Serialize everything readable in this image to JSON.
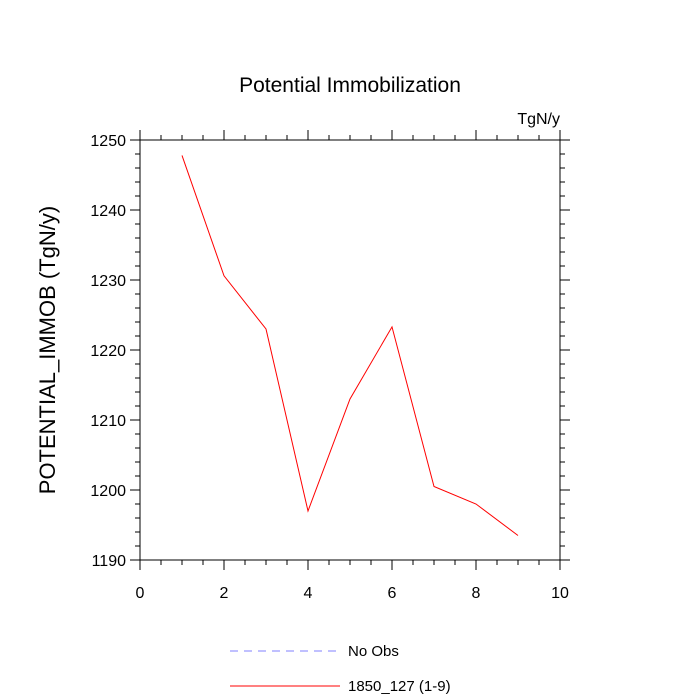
{
  "chart_data": {
    "type": "line",
    "title": "Potential Immobilization",
    "units_label": "TgN/y",
    "ylabel": "POTENTIAL_IMMOB  (TgN/y)",
    "xlabel": "",
    "xlim": [
      0,
      10
    ],
    "ylim": [
      1190,
      1250
    ],
    "x_ticks": [
      0,
      2,
      4,
      6,
      8,
      10
    ],
    "y_ticks": [
      1190,
      1200,
      1210,
      1220,
      1230,
      1240,
      1250
    ],
    "x": [
      1,
      2,
      3,
      4,
      5,
      6,
      7,
      8,
      9
    ],
    "series": [
      {
        "name": "1850_127 (1-9)",
        "color": "#ff0000",
        "style": "solid",
        "values": [
          1247.8,
          1230.6,
          1223.0,
          1197.0,
          1213.0,
          1223.3,
          1200.5,
          1198.0,
          1193.5
        ]
      }
    ],
    "legend": [
      {
        "label": "No Obs",
        "color": "#8080ff",
        "style": "dashed"
      },
      {
        "label": "1850_127 (1-9)",
        "color": "#ff0000",
        "style": "solid"
      }
    ],
    "legend_position": "bottom",
    "grid": false
  }
}
